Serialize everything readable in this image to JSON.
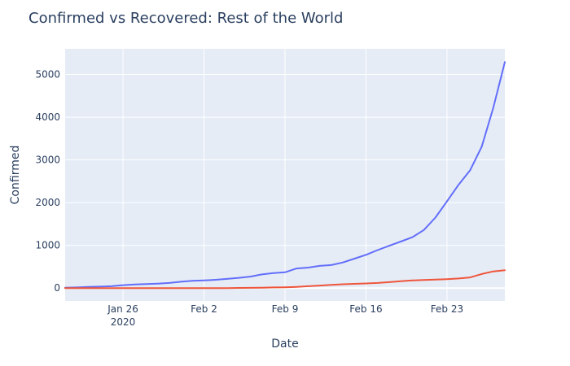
{
  "chart_data": {
    "type": "line",
    "title": "Confirmed vs Recovered: Rest of the World",
    "xlabel": "Date",
    "ylabel": "Confirmed",
    "x_range": [
      "2020-01-21",
      "2020-02-28"
    ],
    "ylim": [
      -300,
      5600
    ],
    "x_ticks": [
      {
        "date": "2020-01-26",
        "label": "Jan 26",
        "sublabel": "2020"
      },
      {
        "date": "2020-02-02",
        "label": "Feb 2"
      },
      {
        "date": "2020-02-09",
        "label": "Feb 9"
      },
      {
        "date": "2020-02-16",
        "label": "Feb 16"
      },
      {
        "date": "2020-02-23",
        "label": "Feb 23"
      }
    ],
    "y_ticks": [
      0,
      1000,
      2000,
      3000,
      4000,
      5000
    ],
    "grid": true,
    "legend": "none",
    "series": [
      {
        "color": "#636efa",
        "x": [
          "2020-01-21",
          "2020-01-22",
          "2020-01-23",
          "2020-01-24",
          "2020-01-25",
          "2020-01-26",
          "2020-01-27",
          "2020-01-28",
          "2020-01-29",
          "2020-01-30",
          "2020-01-31",
          "2020-02-01",
          "2020-02-02",
          "2020-02-03",
          "2020-02-04",
          "2020-02-05",
          "2020-02-06",
          "2020-02-07",
          "2020-02-08",
          "2020-02-09",
          "2020-02-10",
          "2020-02-11",
          "2020-02-12",
          "2020-02-13",
          "2020-02-14",
          "2020-02-15",
          "2020-02-16",
          "2020-02-17",
          "2020-02-18",
          "2020-02-19",
          "2020-02-20",
          "2020-02-21",
          "2020-02-22",
          "2020-02-23",
          "2020-02-24",
          "2020-02-25",
          "2020-02-26",
          "2020-02-27",
          "2020-02-28"
        ],
        "values": [
          8,
          15,
          28,
          35,
          45,
          70,
          85,
          95,
          105,
          120,
          150,
          170,
          180,
          195,
          215,
          240,
          270,
          320,
          350,
          370,
          460,
          480,
          520,
          540,
          600,
          690,
          780,
          890,
          990,
          1090,
          1190,
          1360,
          1650,
          2030,
          2420,
          2760,
          3310,
          4220,
          5290
        ]
      },
      {
        "color": "#ef553b",
        "x": [
          "2020-01-21",
          "2020-01-22",
          "2020-01-23",
          "2020-01-24",
          "2020-01-25",
          "2020-01-26",
          "2020-01-27",
          "2020-01-28",
          "2020-01-29",
          "2020-01-30",
          "2020-01-31",
          "2020-02-01",
          "2020-02-02",
          "2020-02-03",
          "2020-02-04",
          "2020-02-05",
          "2020-02-06",
          "2020-02-07",
          "2020-02-08",
          "2020-02-09",
          "2020-02-10",
          "2020-02-11",
          "2020-02-12",
          "2020-02-13",
          "2020-02-14",
          "2020-02-15",
          "2020-02-16",
          "2020-02-17",
          "2020-02-18",
          "2020-02-19",
          "2020-02-20",
          "2020-02-21",
          "2020-02-22",
          "2020-02-23",
          "2020-02-24",
          "2020-02-25",
          "2020-02-26",
          "2020-02-27",
          "2020-02-28"
        ],
        "values": [
          0,
          0,
          0,
          0,
          0,
          0,
          0,
          0,
          0,
          0,
          0,
          0,
          0,
          0,
          0,
          5,
          7,
          10,
          15,
          20,
          30,
          45,
          60,
          75,
          90,
          100,
          110,
          120,
          140,
          160,
          180,
          190,
          200,
          210,
          225,
          250,
          330,
          390,
          420
        ]
      }
    ]
  }
}
